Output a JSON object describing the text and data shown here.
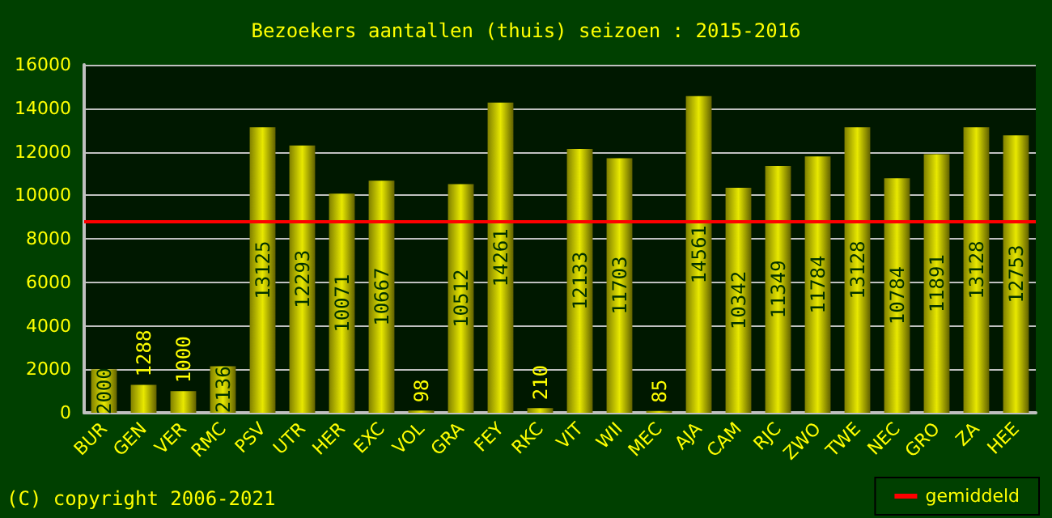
{
  "chart_data": {
    "type": "bar",
    "title": "Bezoekers aantallen (thuis) seizoen : 2015-2016",
    "categories": [
      "BUR",
      "GEN",
      "VER",
      "RMC",
      "PSV",
      "UTR",
      "HER",
      "EXC",
      "VOL",
      "GRA",
      "FEY",
      "RKC",
      "VIT",
      "WII",
      "MEC",
      "AJA",
      "CAM",
      "RJC",
      "ZWO",
      "TWE",
      "NEC",
      "GRO",
      "ZA",
      "HEE"
    ],
    "values": [
      2000,
      1288,
      1000,
      2136,
      13125,
      12293,
      10071,
      10667,
      98,
      10512,
      14261,
      210,
      12133,
      11703,
      85,
      14561,
      10342,
      11349,
      11784,
      13128,
      10784,
      11891,
      13128,
      12753
    ],
    "color": "#e8e800",
    "data_labels": true,
    "ylim": [
      0,
      16000
    ],
    "yticks": [
      0,
      2000,
      4000,
      6000,
      8000,
      10000,
      12000,
      14000,
      16000
    ],
    "grid": "y",
    "ref_lines": [
      {
        "axis": "y",
        "value": 8800,
        "label": "gemiddeld",
        "color": "#ff0000"
      }
    ],
    "legend": "bottom right",
    "annotations": [
      "(C) copyright 2006-2021"
    ]
  }
}
